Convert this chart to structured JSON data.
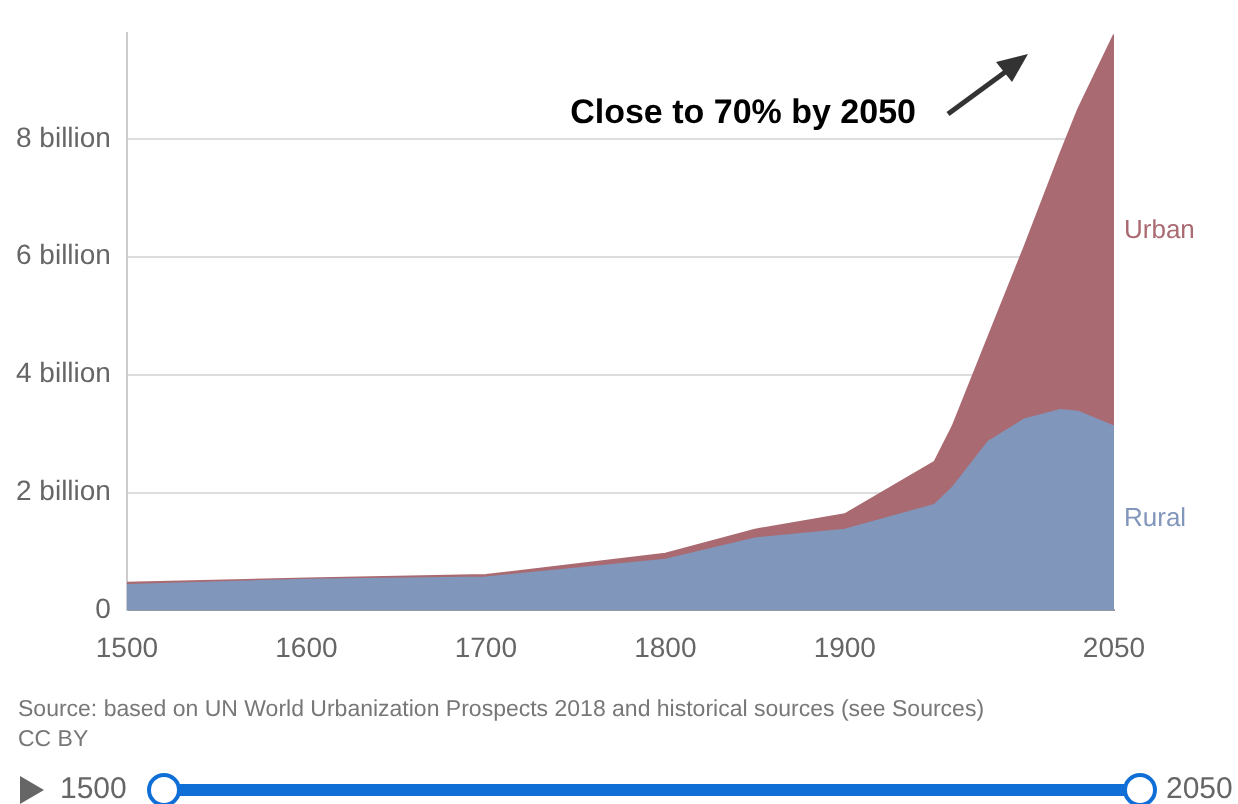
{
  "chart_data": {
    "type": "area",
    "stacked": true,
    "x": [
      1500,
      1600,
      1700,
      1800,
      1850,
      1900,
      1950,
      1960,
      1980,
      2000,
      2020,
      2030,
      2050
    ],
    "series": [
      {
        "name": "Rural",
        "color": "#8196bb",
        "values": [
          0.43,
          0.52,
          0.56,
          0.86,
          1.22,
          1.37,
          1.79,
          2.08,
          2.86,
          3.24,
          3.4,
          3.37,
          3.12
        ]
      },
      {
        "name": "Urban",
        "color": "#a96a71",
        "values": [
          0.04,
          0.02,
          0.04,
          0.1,
          0.15,
          0.26,
          0.73,
          1.04,
          1.78,
          2.92,
          4.34,
          5.13,
          6.65
        ]
      }
    ],
    "xlim": [
      1500,
      2050
    ],
    "xticks": [
      1500,
      1600,
      1700,
      1800,
      1900,
      2050
    ],
    "ylim": [
      0,
      9.8
    ],
    "yticks": [
      0,
      {
        "value": 2,
        "label": "2 billion"
      },
      {
        "value": 4,
        "label": "4 billion"
      },
      {
        "value": 6,
        "label": "6 billion"
      },
      {
        "value": 8,
        "label": "8 billion"
      }
    ],
    "grid": "y",
    "legend": false,
    "annotations": [
      "Close to 70% by 2050",
      "Source: based on UN World Urbanization Prospects 2018 and historical sources (see Sources)",
      "CC BY",
      "1500",
      "2050"
    ]
  }
}
